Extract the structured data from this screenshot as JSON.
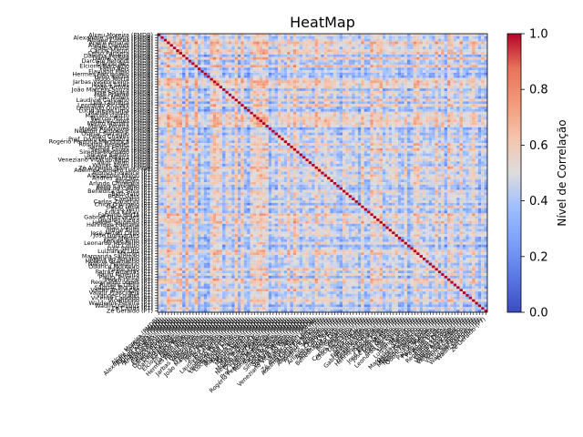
{
  "chart_data": {
    "type": "heatmap",
    "title": "HeatMap",
    "colormap": "coolwarm",
    "vmin": 0.0,
    "vmax": 1.0,
    "diagonal_value": 1.0,
    "colorbar": {
      "label": "Nível de Correlação",
      "ticks": [
        "0.0",
        "0.2",
        "0.4",
        "0.6",
        "0.8",
        "1.0"
      ],
      "position": "right"
    },
    "labels": [
      "Alceu Moreira (PMDB)",
      "Alexandre Serfiotis (PMDB)",
      "Altineu Côrtes (PMDB)",
      "André Amaral (PMDB)",
      "Aníbal Gomes (PMDB)",
      "Baleia Rossi (PMDB)",
      "Carlos Marun (PMDB)",
      "Celso Pansera (PMDB)",
      "Dâmina Pereira (PMDB)",
      "Daniel Vilela (PMDB)",
      "Darcísio Perondi (PMDB)",
      "Edinho Bez (PMDB)",
      "Elcione Barbalho (PMDB)",
      "Fábio Reis (PMDB)",
      "Flaviano Melo (PMDB)",
      "Hermes Parcianello (PMDB)",
      "Hildo Rocha (PMDB)",
      "Hugo Motta (PMDB)",
      "Jarbas Vasconcelos (PMDB)",
      "Jéssica Sales (PMDB)",
      "João Arruda (PMDB)",
      "João Marcelo Souza (PMDB)",
      "José Fogaça (PMDB)",
      "José Priante (PMDB)",
      "Josi Nunes (PMDB)",
      "Laudivio Carvalho (PMDB)",
      "Lelo Coimbra (PMDB)",
      "Leonardo Picciani (PMDB)",
      "Leonardo Quintão (PMDB)",
      "Lucio Vieira Lima (PMDB)",
      "Manoel Junior (PMDB)",
      "Marcelo Castro (PMDB)",
      "Marcos Rotta (PMDB)",
      "Mauro Lopes (PMDB)",
      "Mauro Mariani (PMDB)",
      "Mauro Pereira (PMDB)",
      "Moses Rodrigues (PMDB)",
      "Newton Cardoso Jr (PMDB)",
      "Osmar Serraglio (PMDB)",
      "Pedro Chaves (PMDB)",
      "Prof. Dorinha Seabra (PMDB)",
      "Rogério Peninha Mendonça (PMDB)",
      "Ronaldo Benedet (PMDB)",
      "Saraiva Felipe (PMDB)",
      "Sergio Souza (PMDB)",
      "Simone Morgado (PMDB)",
      "Soraya Santos (PMDB)",
      "Valtenir Pereira (PMDB)",
      "Veneziano Vital do Rêgo (PMDB)",
      "Vitor Valim (PMDB)",
      "Walter Alves (PMDB)",
      "Zé Augusto Nalin (PMDB)",
      "Adelmo Carneiro Leão (PT)",
      "Afonso Florence (PT)",
      "Alessandro Molon (PT)",
      "Andres Sanchez (PT)",
      "Angelim (PT)",
      "Arlindo Chinaglia (PT)",
      "Assis Carvalho (PT)",
      "Assis do Couto (PT)",
      "Benedita da Silva (PT)",
      "Beto Faro (PT)",
      "Bohn Gass (PT)",
      "Caetano (PT)",
      "Carlos Zarattini (PT)",
      "Chico D'Angelo (PT)",
      "Décio Lima (PT)",
      "Enio Verri (PT)",
      "Erika Kokay (PT)",
      "Fabiano Horta (PT)",
      "Gabriel Guimarães (PT)",
      "Givaldo Vieira (PT)",
      "Helder Salomão (PT)",
      "Henrique Fontana (PT)",
      "João Daniel (PT)",
      "Jorge Solla (PT)",
      "José Airton Cirilo (PT)",
      "José Guimarães (PT)",
      "José Mentor (PT)",
      "Leo de Brito (PT)",
      "Leonardo Monteiro (PT)",
      "Luiz Couto (PT)",
      "Luiz Sérgio (PT)",
      "Luizianne Lins (PT)",
      "Marcon (PT)",
      "Margarida Salomão (PT)",
      "Maria do Rosário (PT)",
      "Moema Gramacho (PT)",
      "Nelson Pellegrino (PT)",
      "Odorico Monteiro (PT)",
      "Padre João (PT)",
      "Patrus Ananias (PT)",
      "Paulo Pimenta (PT)",
      "Paulo Teixeira (PT)",
      "Pedro Uczai (PT)",
      "Reginaldo Lopes (PT)",
      "Rubens Otoni (PT)",
      "Ságuas Moraes (PT)",
      "Valmir Assunção (PT)",
      "Valmir Prascidelli (PT)",
      "Vander Loubet (PT)",
      "Vicente Candido (PT)",
      "Vicentinho (PT)",
      "Waldenor Pereira (PT)",
      "Wadih Damous (PT)",
      "Zé Carlos (PT)",
      "Zé Geraldo (PT)"
    ]
  }
}
